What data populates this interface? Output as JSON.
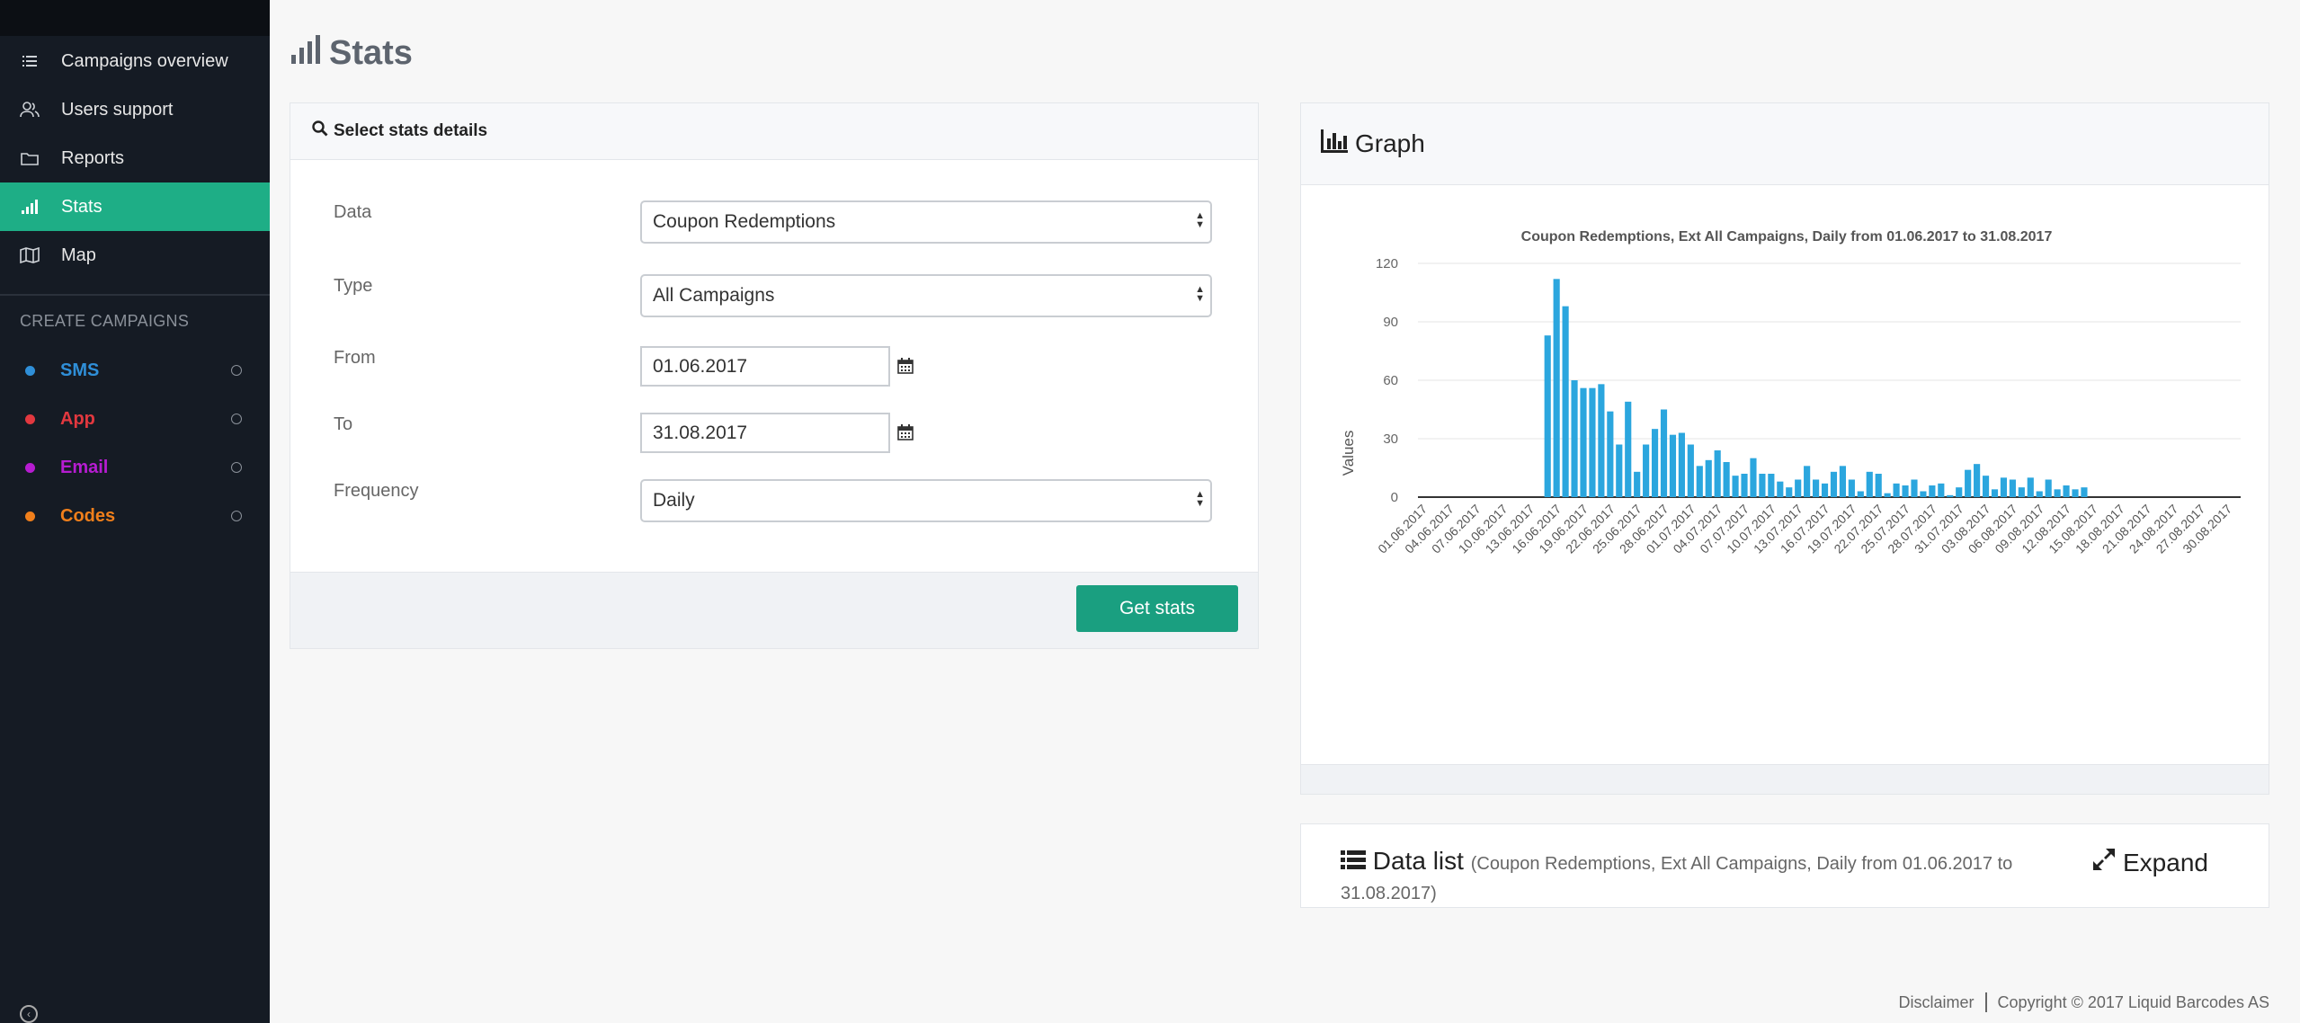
{
  "sidebar": {
    "nav": [
      {
        "label": "Campaigns overview",
        "icon": "list-icon"
      },
      {
        "label": "Users support",
        "icon": "users-icon"
      },
      {
        "label": "Reports",
        "icon": "folder-icon"
      },
      {
        "label": "Stats",
        "icon": "bar-chart-icon",
        "active": true
      },
      {
        "label": "Map",
        "icon": "map-icon"
      }
    ],
    "section_title": "CREATE CAMPAIGNS",
    "campaigns": [
      {
        "label": "SMS",
        "color": "#2f8fd8"
      },
      {
        "label": "App",
        "color": "#e2383f"
      },
      {
        "label": "Email",
        "color": "#b61cd1"
      },
      {
        "label": "Codes",
        "color": "#f07f1b"
      }
    ]
  },
  "page": {
    "title": "Stats"
  },
  "stats_form": {
    "title": "Select stats details",
    "data_label": "Data",
    "data_value": "Coupon Redemptions",
    "type_label": "Type",
    "type_value": "All Campaigns",
    "from_label": "From",
    "from_value": "01.06.2017",
    "to_label": "To",
    "to_value": "31.08.2017",
    "frequency_label": "Frequency",
    "frequency_value": "Daily",
    "submit_label": "Get stats"
  },
  "graph": {
    "title": "Graph"
  },
  "data_list": {
    "title": "Data list",
    "subtitle": "(Coupon Redemptions, Ext All Campaigns, Daily from 01.06.2017 to 31.08.2017)",
    "expand_label": "Expand"
  },
  "footer": {
    "disclaimer": "Disclaimer",
    "copyright": "Copyright © 2017 Liquid Barcodes AS"
  },
  "colors": {
    "accent": "#1eae86",
    "bar": "#2ba6de",
    "sidebar": "#151b24"
  },
  "chart_data": {
    "type": "bar",
    "title": "Coupon Redemptions, Ext All Campaigns, Daily from 01.06.2017 to 31.08.2017",
    "ylabel": "Values",
    "xlabel": "",
    "ylim": [
      0,
      120
    ],
    "yticks": [
      0,
      30,
      60,
      90,
      120
    ],
    "grid": true,
    "start_date": "01.06.2017",
    "xtick_labels": [
      "01.06.2017",
      "04.06.2017",
      "07.06.2017",
      "10.06.2017",
      "13.06.2017",
      "16.06.2017",
      "19.06.2017",
      "22.06.2017",
      "25.06.2017",
      "28.06.2017",
      "01.07.2017",
      "04.07.2017",
      "07.07.2017",
      "10.07.2017",
      "13.07.2017",
      "16.07.2017",
      "19.07.2017",
      "22.07.2017",
      "25.07.2017",
      "28.07.2017",
      "31.07.2017",
      "03.08.2017",
      "06.08.2017",
      "09.08.2017",
      "12.08.2017",
      "15.08.2017",
      "18.08.2017",
      "21.08.2017",
      "24.08.2017",
      "27.08.2017",
      "30.08.2017"
    ],
    "values": [
      0,
      0,
      0,
      0,
      0,
      0,
      0,
      0,
      0,
      0,
      0,
      0,
      0,
      0,
      83,
      112,
      98,
      60,
      56,
      56,
      58,
      44,
      27,
      49,
      13,
      27,
      35,
      45,
      32,
      33,
      27,
      16,
      19,
      24,
      18,
      11,
      12,
      20,
      12,
      12,
      8,
      5,
      9,
      16,
      9,
      7,
      13,
      16,
      9,
      3,
      13,
      12,
      2,
      7,
      6,
      9,
      3,
      6,
      7,
      1,
      5,
      14,
      17,
      11,
      4,
      10,
      9,
      5,
      10,
      3,
      9,
      4,
      6,
      4,
      5,
      0,
      0,
      0,
      0,
      0,
      0,
      0,
      0,
      0,
      0,
      0,
      0,
      0,
      0,
      0,
      0,
      0
    ]
  }
}
